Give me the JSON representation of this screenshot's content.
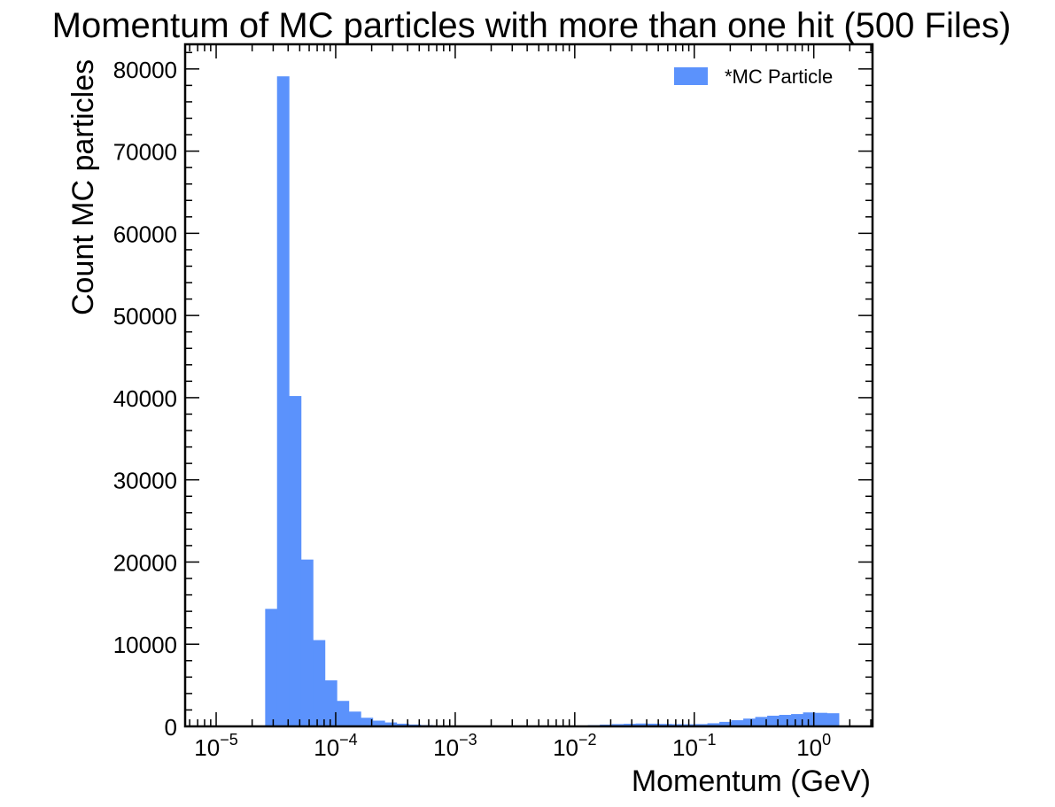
{
  "chart_data": {
    "type": "bar",
    "title": "Momentum of MC particles with more than one hit (500 Files)",
    "xlabel": "Momentum (GeV)",
    "ylabel": "Count MC particles",
    "xscale": "log",
    "xlim": [
      5.5e-06,
      3.1
    ],
    "ylim": [
      0,
      83000
    ],
    "grid": false,
    "legend_position": "top-right",
    "color": "#5b92fc",
    "x_ticks": [
      {
        "base": "10",
        "exp": "−5",
        "value": 1e-05
      },
      {
        "base": "10",
        "exp": "−4",
        "value": 0.0001
      },
      {
        "base": "10",
        "exp": "−3",
        "value": 0.001
      },
      {
        "base": "10",
        "exp": "−2",
        "value": 0.01
      },
      {
        "base": "10",
        "exp": "−1",
        "value": 0.1
      },
      {
        "base": "10",
        "exp": "0",
        "value": 1
      }
    ],
    "y_ticks": [
      0,
      10000,
      20000,
      30000,
      40000,
      50000,
      60000,
      70000,
      80000
    ],
    "series": [
      {
        "name": "*MC Particle",
        "bin_edges": [
          2.57e-05,
          3.23e-05,
          4.07e-05,
          5.13e-05,
          6.46e-05,
          8.13e-05,
          0.0001023,
          0.0001288,
          0.0001622,
          0.0002042,
          0.000257,
          0.0003236,
          0.0004074,
          0.0005129,
          0.0006457,
          0.0008128,
          0.001023,
          0.001288,
          0.001622,
          0.002042,
          0.00257,
          0.003236,
          0.004074,
          0.005129,
          0.006457,
          0.008128,
          0.01023,
          0.01288,
          0.01622,
          0.02042,
          0.0257,
          0.03236,
          0.04074,
          0.05129,
          0.06457,
          0.08128,
          0.1023,
          0.1288,
          0.1622,
          0.2042,
          0.257,
          0.3236,
          0.4074,
          0.5129,
          0.6457,
          0.8128,
          1.023,
          1.288,
          1.622
        ],
        "values": [
          14300,
          79100,
          40200,
          20300,
          10500,
          5600,
          3100,
          1800,
          1050,
          700,
          480,
          330,
          230,
          160,
          110,
          80,
          60,
          50,
          40,
          35,
          30,
          30,
          30,
          30,
          40,
          60,
          100,
          150,
          220,
          280,
          320,
          350,
          330,
          300,
          270,
          260,
          280,
          380,
          550,
          750,
          950,
          1150,
          1300,
          1400,
          1500,
          1700,
          1650,
          1600
        ]
      }
    ]
  }
}
